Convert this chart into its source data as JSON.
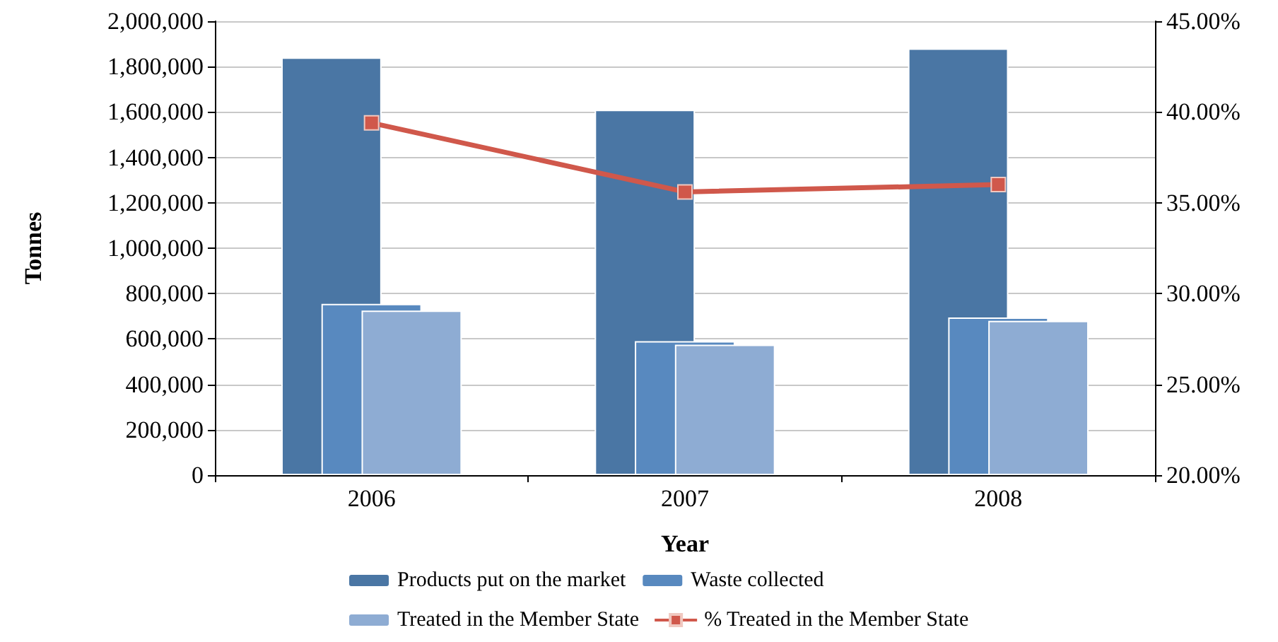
{
  "chart_data": {
    "type": "bar",
    "xlabel": "Year",
    "ylabel": "Tonnes",
    "categories": [
      "2006",
      "2007",
      "2008"
    ],
    "series": [
      {
        "name": "Products put on the market",
        "color": "#4a76a4",
        "values": [
          1840000,
          1610000,
          1880000
        ]
      },
      {
        "name": "Waste collected",
        "color": "#5889bf",
        "values": [
          755000,
          590000,
          695000
        ]
      },
      {
        "name": "Treated in the Member State",
        "color": "#8eacd3",
        "values": [
          725000,
          575000,
          680000
        ]
      },
      {
        "name": "% Treated in the Member State",
        "type": "line",
        "axis": "y2",
        "color": "#d0584b",
        "values": [
          39.4,
          35.6,
          36.0
        ],
        "marker": "square"
      }
    ],
    "ylim": [
      0,
      2000000
    ],
    "yticks": [
      0,
      {
        "value": 200000,
        "label": "200,000"
      },
      {
        "value": 400000,
        "label": "400,000"
      },
      {
        "value": 600000,
        "label": "600,000"
      },
      {
        "value": 800000,
        "label": "800,000"
      },
      {
        "value": 1000000,
        "label": "1,000,000"
      },
      {
        "value": 1200000,
        "label": "1,200,000"
      },
      {
        "value": 1400000,
        "label": "1,400,000"
      },
      {
        "value": 1600000,
        "label": "1,600,000"
      },
      {
        "value": 1800000,
        "label": "1,800,000"
      },
      {
        "value": 2000000,
        "label": "2,000,000"
      }
    ],
    "y2lim": [
      20,
      45
    ],
    "y2ticks": [
      {
        "value": 20,
        "label": "20.00%"
      },
      {
        "value": 25,
        "label": "25.00%"
      },
      {
        "value": 30,
        "label": "30.00%"
      },
      {
        "value": 35,
        "label": "35.00%"
      },
      {
        "value": 40,
        "label": "40.00%"
      },
      {
        "value": 45,
        "label": "45.00%"
      }
    ],
    "grid": "y",
    "legend": "bottom"
  }
}
